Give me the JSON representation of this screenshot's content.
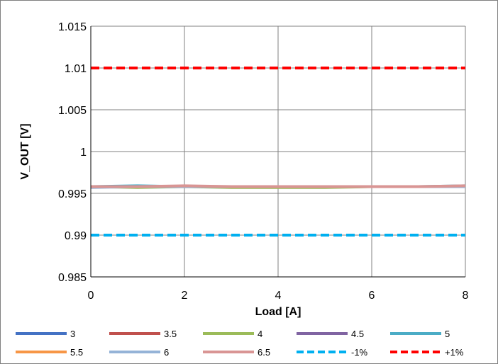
{
  "chart_data": {
    "type": "line",
    "title": "",
    "xlabel": "Load [A]",
    "ylabel": "V_OUT [V]",
    "xlim": [
      0,
      8
    ],
    "ylim": [
      0.985,
      1.015
    ],
    "x_ticks": [
      "0",
      "2",
      "4",
      "6",
      "8"
    ],
    "y_ticks": [
      "0.985",
      "0.99",
      "0.995",
      "1",
      "1.005",
      "1.01",
      "1.015"
    ],
    "grid": true,
    "legend_position": "bottom",
    "x": [
      0,
      1,
      2,
      3,
      4,
      5,
      6,
      7,
      8
    ],
    "series": [
      {
        "name": "3",
        "color": "#4472c4",
        "dash": "solid",
        "values": [
          0.9958,
          0.9958,
          0.9958,
          0.9958,
          0.9958,
          0.9958,
          0.9958,
          0.9958,
          0.9958
        ]
      },
      {
        "name": "3.5",
        "color": "#c0504d",
        "dash": "solid",
        "values": [
          0.9958,
          0.9958,
          0.9958,
          0.9958,
          0.9958,
          0.9958,
          0.9958,
          0.9958,
          0.9958
        ]
      },
      {
        "name": "4",
        "color": "#9bbb59",
        "dash": "solid",
        "values": [
          0.9958,
          0.9957,
          0.9958,
          0.9957,
          0.9957,
          0.9957,
          0.9958,
          0.9958,
          0.9958
        ]
      },
      {
        "name": "4.5",
        "color": "#8064a2",
        "dash": "solid",
        "values": [
          0.9958,
          0.9958,
          0.9958,
          0.9958,
          0.9958,
          0.9958,
          0.9958,
          0.9958,
          0.9958
        ]
      },
      {
        "name": "5",
        "color": "#4bacc6",
        "dash": "solid",
        "values": [
          0.9958,
          0.9959,
          0.9958,
          0.9958,
          0.9958,
          0.9958,
          0.9958,
          0.9958,
          0.9959
        ]
      },
      {
        "name": "5.5",
        "color": "#f79646",
        "dash": "solid",
        "values": [
          0.9958,
          0.9958,
          0.9958,
          0.9958,
          0.9958,
          0.9958,
          0.9958,
          0.9958,
          0.9958
        ]
      },
      {
        "name": "6",
        "color": "#95b3d7",
        "dash": "solid",
        "values": [
          0.9957,
          0.9958,
          0.9958,
          0.9958,
          0.9958,
          0.9958,
          0.9958,
          0.9958,
          0.9958
        ]
      },
      {
        "name": "6.5",
        "color": "#d99594",
        "dash": "solid",
        "values": [
          0.9958,
          0.9958,
          0.9959,
          0.9958,
          0.9958,
          0.9958,
          0.9958,
          0.9958,
          0.9959
        ]
      },
      {
        "name": "-1%",
        "color": "#00b0f0",
        "dash": "dashed",
        "values": [
          0.99,
          0.99,
          0.99,
          0.99,
          0.99,
          0.99,
          0.99,
          0.99,
          0.99
        ]
      },
      {
        "name": "+1%",
        "color": "#ff0000",
        "dash": "dashed",
        "values": [
          1.01,
          1.01,
          1.01,
          1.01,
          1.01,
          1.01,
          1.01,
          1.01,
          1.01
        ]
      }
    ]
  }
}
